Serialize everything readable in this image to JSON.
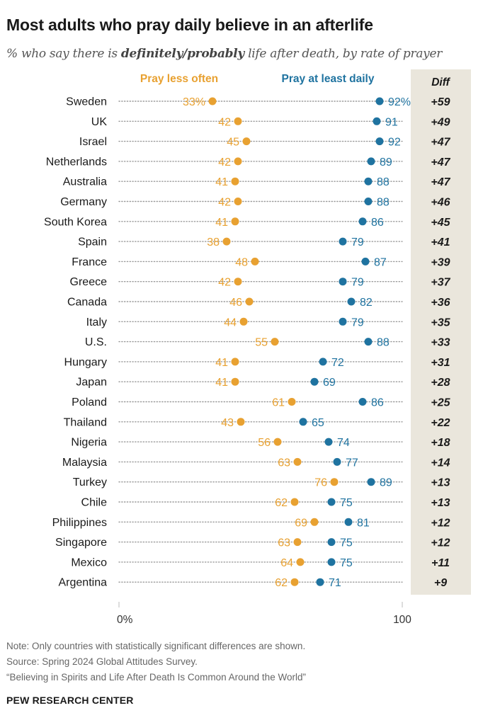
{
  "title": "Most adults who pray daily believe in an afterlife",
  "subtitle": {
    "prefix": "% who say there is ",
    "emphasis": "definitely/probably",
    "suffix": " life after death, by rate of prayer"
  },
  "colors": {
    "less_often": "#E8A131",
    "daily": "#1F73A0",
    "diff_bg": "#EAE6DC",
    "dotted": "#9a9a9a"
  },
  "chart_data": {
    "type": "dot",
    "series": [
      {
        "name": "Pray less often",
        "key": "less"
      },
      {
        "name": "Pray at least daily",
        "key": "daily"
      }
    ],
    "diff_header": "Diff",
    "xlim": [
      0,
      100
    ],
    "x_ticks": [
      "0%",
      "100"
    ],
    "rows": [
      {
        "country": "Sweden",
        "less": 33,
        "daily": 92,
        "diff": "+59",
        "less_label": "33%",
        "daily_label": "92%"
      },
      {
        "country": "UK",
        "less": 42,
        "daily": 91,
        "diff": "+49",
        "less_label": "42",
        "daily_label": "91"
      },
      {
        "country": "Israel",
        "less": 45,
        "daily": 92,
        "diff": "+47",
        "less_label": "45",
        "daily_label": "92"
      },
      {
        "country": "Netherlands",
        "less": 42,
        "daily": 89,
        "diff": "+47",
        "less_label": "42",
        "daily_label": "89"
      },
      {
        "country": "Australia",
        "less": 41,
        "daily": 88,
        "diff": "+47",
        "less_label": "41",
        "daily_label": "88"
      },
      {
        "country": "Germany",
        "less": 42,
        "daily": 88,
        "diff": "+46",
        "less_label": "42",
        "daily_label": "88"
      },
      {
        "country": "South Korea",
        "less": 41,
        "daily": 86,
        "diff": "+45",
        "less_label": "41",
        "daily_label": "86"
      },
      {
        "country": "Spain",
        "less": 38,
        "daily": 79,
        "diff": "+41",
        "less_label": "38",
        "daily_label": "79"
      },
      {
        "country": "France",
        "less": 48,
        "daily": 87,
        "diff": "+39",
        "less_label": "48",
        "daily_label": "87"
      },
      {
        "country": "Greece",
        "less": 42,
        "daily": 79,
        "diff": "+37",
        "less_label": "42",
        "daily_label": "79"
      },
      {
        "country": "Canada",
        "less": 46,
        "daily": 82,
        "diff": "+36",
        "less_label": "46",
        "daily_label": "82"
      },
      {
        "country": "Italy",
        "less": 44,
        "daily": 79,
        "diff": "+35",
        "less_label": "44",
        "daily_label": "79"
      },
      {
        "country": "U.S.",
        "less": 55,
        "daily": 88,
        "diff": "+33",
        "less_label": "55",
        "daily_label": "88"
      },
      {
        "country": "Hungary",
        "less": 41,
        "daily": 72,
        "diff": "+31",
        "less_label": "41",
        "daily_label": "72"
      },
      {
        "country": "Japan",
        "less": 41,
        "daily": 69,
        "diff": "+28",
        "less_label": "41",
        "daily_label": "69"
      },
      {
        "country": "Poland",
        "less": 61,
        "daily": 86,
        "diff": "+25",
        "less_label": "61",
        "daily_label": "86"
      },
      {
        "country": "Thailand",
        "less": 43,
        "daily": 65,
        "diff": "+22",
        "less_label": "43",
        "daily_label": "65"
      },
      {
        "country": "Nigeria",
        "less": 56,
        "daily": 74,
        "diff": "+18",
        "less_label": "56",
        "daily_label": "74"
      },
      {
        "country": "Malaysia",
        "less": 63,
        "daily": 77,
        "diff": "+14",
        "less_label": "63",
        "daily_label": "77"
      },
      {
        "country": "Turkey",
        "less": 76,
        "daily": 89,
        "diff": "+13",
        "less_label": "76",
        "daily_label": "89"
      },
      {
        "country": "Chile",
        "less": 62,
        "daily": 75,
        "diff": "+13",
        "less_label": "62",
        "daily_label": "75"
      },
      {
        "country": "Philippines",
        "less": 69,
        "daily": 81,
        "diff": "+12",
        "less_label": "69",
        "daily_label": "81"
      },
      {
        "country": "Singapore",
        "less": 63,
        "daily": 75,
        "diff": "+12",
        "less_label": "63",
        "daily_label": "75"
      },
      {
        "country": "Mexico",
        "less": 64,
        "daily": 75,
        "diff": "+11",
        "less_label": "64",
        "daily_label": "75"
      },
      {
        "country": "Argentina",
        "less": 62,
        "daily": 71,
        "diff": "+9",
        "less_label": "62",
        "daily_label": "71"
      }
    ]
  },
  "footer": {
    "note": "Note: Only countries with statistically significant differences are shown.",
    "source": "Source: Spring 2024 Global Attitudes Survey.",
    "report": "“Believing in Spirits and Life After Death Is Common Around the World”",
    "brand": "PEW RESEARCH CENTER"
  }
}
